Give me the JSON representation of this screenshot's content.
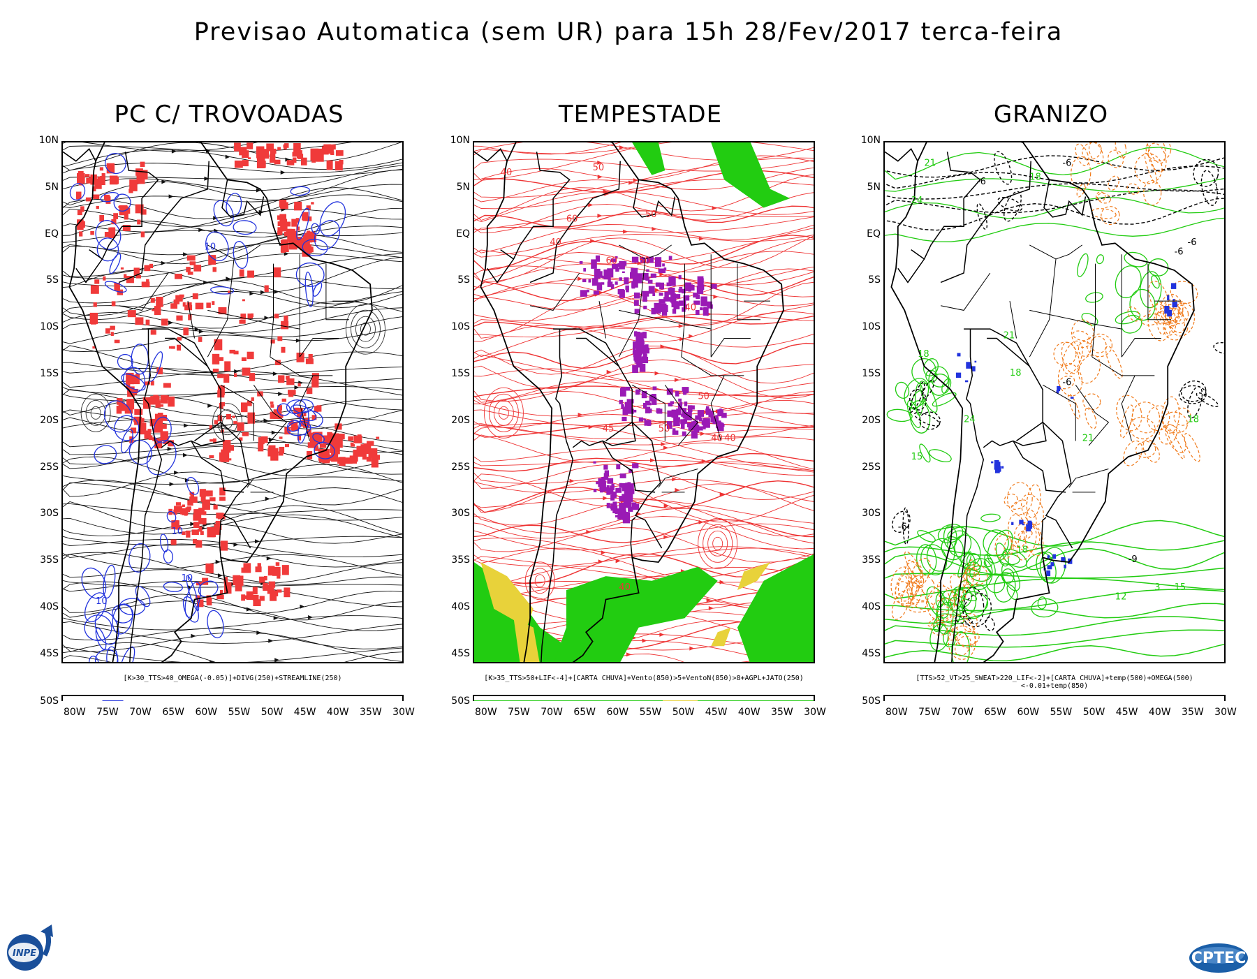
{
  "title": "Previsao Automatica (sem UR) para 15h 28/Fev/2017 terca-feira",
  "lat_labels": [
    "10N",
    "5N",
    "EQ",
    "5S",
    "10S",
    "15S",
    "20S",
    "25S",
    "30S",
    "35S",
    "40S",
    "45S",
    "50S"
  ],
  "lon_labels": [
    "80W",
    "75W",
    "70W",
    "65W",
    "60W",
    "55W",
    "50W",
    "45W",
    "40W",
    "35W",
    "30W"
  ],
  "panels": [
    {
      "title": "PC C/ TROVOADAS",
      "caption": "[K>30_TTS>40_OMEGA(-0.05)]+DIVG(250)+STREAMLINE(250)",
      "contour_labels": [
        "10",
        "10",
        "10",
        "10"
      ],
      "colors": {
        "shade": "#f03a3a",
        "contour": "#2233dd",
        "streamline": "#111111"
      }
    },
    {
      "title": "TEMPESTADE",
      "caption": "[K>35_TTS>50+LIF<-4]+[CARTA CHUVA]+Vento(850)>5+VentoN(850)>8+AGPL+JATO(250)",
      "contour_labels": [
        "40",
        "50",
        "60",
        "50",
        "40",
        "60",
        "50",
        "40",
        "50",
        "40",
        "45",
        "50",
        "40",
        "40"
      ],
      "colors": {
        "shade": "#9a1ab5",
        "contour": "#ee3333",
        "green": "#22cc11",
        "yellow": "#e8d23a"
      }
    },
    {
      "title": "GRANIZO",
      "caption": "[TTS>52_VT>25_SWEAT>220_LIF<-2]+[CARTA CHUVA]+temp(500)+OMEGA(500)<-0.01+temp(850)",
      "contour_labels": [
        "-6",
        "-6",
        "18",
        "21",
        "24",
        "18",
        "-6",
        "18",
        "21",
        "24",
        "15",
        "18",
        "-6",
        "-9",
        "12",
        "15",
        "-6",
        "18",
        "21",
        "3",
        "-6"
      ],
      "colors": {
        "green": "#22cc11",
        "orange": "#f07a1a",
        "black": "#000000",
        "blue": "#2233dd"
      }
    }
  ],
  "logos": {
    "left": "INPE",
    "right": "CPTEC"
  }
}
